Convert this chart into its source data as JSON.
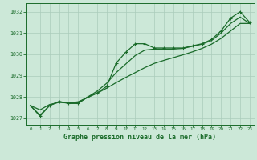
{
  "title": "Graphe pression niveau de la mer (hPa)",
  "xlim": [
    -0.5,
    23.5
  ],
  "ylim": [
    1026.7,
    1032.4
  ],
  "yticks": [
    1027,
    1028,
    1029,
    1030,
    1031,
    1032
  ],
  "xticks": [
    0,
    1,
    2,
    3,
    4,
    5,
    6,
    7,
    8,
    9,
    10,
    11,
    12,
    13,
    14,
    15,
    16,
    17,
    18,
    19,
    20,
    21,
    22,
    23
  ],
  "bg_color": "#cce8d8",
  "grid_color": "#aaccbb",
  "line_color": "#1a6b2a",
  "y_main": [
    1027.6,
    1027.1,
    1027.6,
    1027.8,
    1027.7,
    1027.7,
    1028.0,
    1028.2,
    1028.5,
    1029.6,
    1030.1,
    1030.5,
    1030.5,
    1030.3,
    1030.3,
    1030.3,
    1030.3,
    1030.4,
    1030.5,
    1030.7,
    1031.1,
    1031.7,
    1032.0,
    1031.5
  ],
  "y_trend": [
    1027.6,
    1027.4,
    1027.65,
    1027.75,
    1027.72,
    1027.78,
    1027.98,
    1028.18,
    1028.42,
    1028.68,
    1028.92,
    1029.15,
    1029.38,
    1029.58,
    1029.72,
    1029.85,
    1029.98,
    1030.12,
    1030.28,
    1030.48,
    1030.75,
    1031.1,
    1031.45,
    1031.45
  ],
  "y_mid": [
    1027.6,
    1027.15,
    1027.6,
    1027.78,
    1027.72,
    1027.73,
    1028.0,
    1028.28,
    1028.65,
    1029.15,
    1029.55,
    1029.95,
    1030.2,
    1030.25,
    1030.25,
    1030.25,
    1030.28,
    1030.38,
    1030.48,
    1030.65,
    1031.0,
    1031.45,
    1031.75,
    1031.45
  ]
}
